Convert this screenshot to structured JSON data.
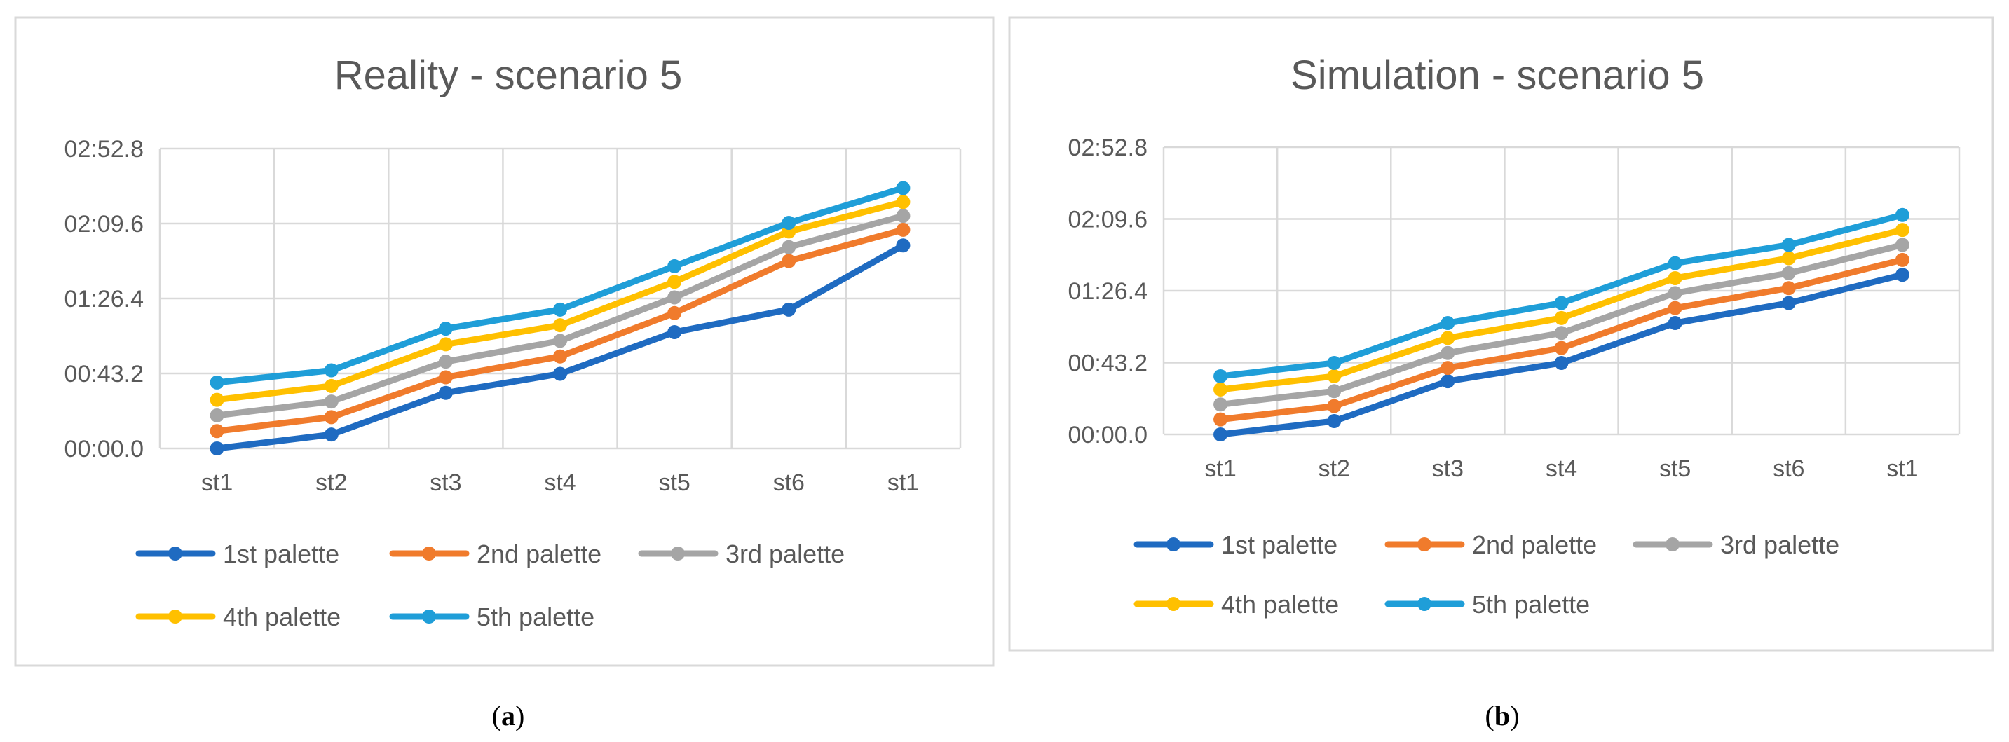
{
  "chart_data": [
    {
      "type": "line",
      "title": "Reality - scenario 5",
      "caption_letter": "a",
      "categories": [
        "st1",
        "st2",
        "st3",
        "st4",
        "st5",
        "st6",
        "st1"
      ],
      "y_tick_labels": [
        "00:00.0",
        "00:43.2",
        "01:26.4",
        "02:09.6",
        "02:52.8"
      ],
      "ylim_seconds": [
        0,
        172.8
      ],
      "y_unit": "mm:ss.t",
      "grid": true,
      "legend_position": "bottom",
      "series": [
        {
          "name": "1st palette",
          "color": "#1f6bc1",
          "values": [
            0,
            8,
            32,
            43,
            67,
            80,
            117
          ]
        },
        {
          "name": "2nd palette",
          "color": "#f07b2c",
          "values": [
            10,
            18,
            41,
            53,
            78,
            108,
            126
          ]
        },
        {
          "name": "3rd palette",
          "color": "#a5a5a5",
          "values": [
            19,
            27,
            50,
            62,
            87,
            116,
            134
          ]
        },
        {
          "name": "4th palette",
          "color": "#ffc000",
          "values": [
            28,
            36,
            60,
            71,
            96,
            125,
            142
          ]
        },
        {
          "name": "5th palette",
          "color": "#1f9ed8",
          "values": [
            38,
            45,
            69,
            80,
            105,
            130,
            150
          ]
        }
      ]
    },
    {
      "type": "line",
      "title": "Simulation - scenario 5",
      "caption_letter": "b",
      "categories": [
        "st1",
        "st2",
        "st3",
        "st4",
        "st5",
        "st6",
        "st1"
      ],
      "y_tick_labels": [
        "00:00.0",
        "00:43.2",
        "01:26.4",
        "02:09.6",
        "02:52.8"
      ],
      "ylim_seconds": [
        0,
        172.8
      ],
      "y_unit": "mm:ss.t",
      "grid": true,
      "legend_position": "bottom",
      "series": [
        {
          "name": "1st palette",
          "color": "#1f6bc1",
          "values": [
            0,
            8,
            32,
            43,
            67,
            79,
            96
          ]
        },
        {
          "name": "2nd palette",
          "color": "#f07b2c",
          "values": [
            9,
            17,
            40,
            52,
            76,
            88,
            105
          ]
        },
        {
          "name": "3rd palette",
          "color": "#a5a5a5",
          "values": [
            18,
            26,
            49,
            61,
            85,
            97,
            114
          ]
        },
        {
          "name": "4th palette",
          "color": "#ffc000",
          "values": [
            27,
            35,
            58,
            70,
            94,
            106,
            123
          ]
        },
        {
          "name": "5th palette",
          "color": "#1f9ed8",
          "values": [
            35,
            43,
            67,
            79,
            103,
            114,
            132
          ]
        }
      ]
    }
  ]
}
